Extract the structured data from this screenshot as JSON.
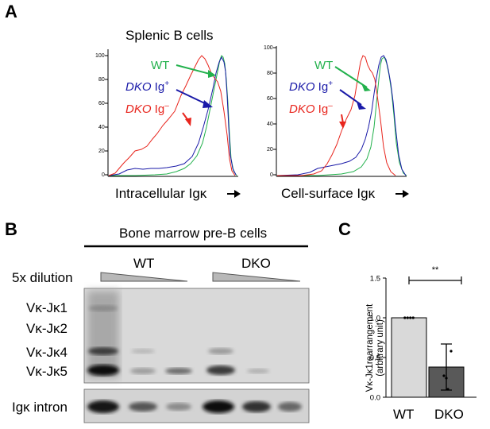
{
  "panel_a": {
    "letter": "A",
    "title": "Splenic B cells",
    "ytick_labels": [
      "100",
      "80",
      "60",
      "40",
      "20",
      "0"
    ],
    "left_xlabel": "Intracellular Igκ",
    "right_xlabel": "Cell-surface Igκ",
    "legend": {
      "wt": "WT",
      "dko_plus_italic": "DKO",
      "dko_plus_rest": " Ig",
      "dko_plus_sup": "+",
      "dko_minus_italic": "DKO",
      "dko_minus_rest": " Ig",
      "dko_minus_sup": "–"
    },
    "colors": {
      "wt": "#22b14c",
      "dko_plus": "#1a1aa8",
      "dko_minus": "#e8251d"
    }
  },
  "panel_b": {
    "letter": "B",
    "title": "Bone marrow pre-B cells",
    "dilution_label": "5x dilution",
    "group_wt": "WT",
    "group_dko": "DKO",
    "band_labels": [
      "Vκ-Jκ1",
      "Vκ-Jκ2",
      "Vκ-Jκ4",
      "Vκ-Jκ5"
    ],
    "control_label": "Igκ intron"
  },
  "panel_c": {
    "letter": "C",
    "ylabel_line1": "Vκ-Jκ1rearrangement",
    "ylabel_line2": "(arbitrary unit)",
    "significance": "**",
    "chart_data": {
      "type": "bar",
      "categories": [
        "WT",
        "DKO"
      ],
      "values": [
        1.0,
        0.38
      ],
      "error": [
        0.0,
        0.29
      ],
      "points": [
        [
          1.0,
          1.0,
          1.0,
          1.0
        ],
        [
          0.58,
          0.24,
          0.27,
          0.1
        ]
      ],
      "ylim": [
        0,
        1.5
      ],
      "yticks": [
        "0.0",
        "0.5",
        "1.0",
        "1.5"
      ],
      "colors": [
        "#d9d9d9",
        "#595959"
      ]
    }
  }
}
